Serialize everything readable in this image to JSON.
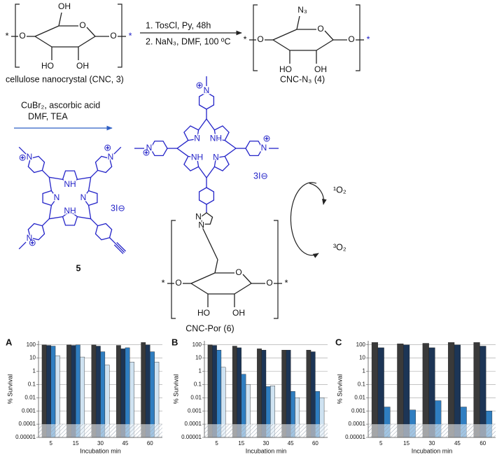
{
  "scheme": {
    "step1": [
      "1. TosCl, Py, 48h",
      "2. NaN₃, DMF, 100 ºC"
    ],
    "compound3": "cellulose nanocrystal (CNC, 3)",
    "compound4": "CNC-N₃ (4)",
    "step2": [
      "CuBr₂, ascorbic acid",
      "DMF, TEA"
    ],
    "compound6": "CNC-Por (6)",
    "cycle": [
      "¹O₂",
      "³O₂"
    ],
    "sugars": [
      {
        "atoms": [
          "O",
          "O",
          "O",
          "HO",
          "OH",
          "OH"
        ],
        "stars": [
          "*",
          "*"
        ]
      },
      {
        "atoms": [
          "O",
          "O",
          "O",
          "HO",
          "OH",
          "N₃"
        ],
        "stars": [
          "*",
          "*"
        ]
      },
      {
        "atoms": [
          "O",
          "O",
          "O",
          "HO",
          "OH"
        ],
        "stars": [
          "*",
          "*"
        ]
      }
    ],
    "porphyrins": [
      {
        "label": "5",
        "atoms": [
          "N",
          "NH",
          "N",
          "NH"
        ],
        "pyridinium": [
          "N",
          "N",
          "N"
        ],
        "counterion": "3I⊖"
      },
      {
        "atoms": [
          "N",
          "NH",
          "N",
          "NH"
        ],
        "pyridinium": [
          "N",
          "N",
          "N"
        ],
        "triazole": [
          "N",
          "N"
        ],
        "counterion": "3I⊖"
      }
    ]
  },
  "chart_data": [
    {
      "type": "bar",
      "label": "A",
      "xlabel": "Incubation min",
      "ylabel": "% Survival",
      "categories": [
        "5",
        "15",
        "30",
        "45",
        "60"
      ],
      "series": [
        {
          "color": "#3a3a3a",
          "values": [
            100,
            100,
            100,
            90,
            150
          ]
        },
        {
          "color": "#1c3556",
          "values": [
            90,
            90,
            80,
            50,
            100
          ]
        },
        {
          "color": "#2f7ec1",
          "values": [
            80,
            100,
            30,
            60,
            30
          ]
        },
        {
          "color": "#cfe3f2",
          "values": [
            15,
            12,
            3,
            5,
            5
          ]
        }
      ],
      "ylim": [
        1e-05,
        200
      ],
      "yticks": [
        1e-05,
        0.0001,
        0.001,
        0.01,
        0.1,
        1,
        10,
        100
      ],
      "log_y": true,
      "grid": true,
      "shaded_below": 0.0001
    },
    {
      "type": "bar",
      "label": "B",
      "xlabel": "Incubation min",
      "ylabel": "% Survival",
      "categories": [
        "5",
        "15",
        "30",
        "45",
        "60"
      ],
      "series": [
        {
          "color": "#3a3a3a",
          "values": [
            100,
            80,
            50,
            40,
            40
          ]
        },
        {
          "color": "#1c3556",
          "values": [
            90,
            60,
            40,
            40,
            30
          ]
        },
        {
          "color": "#2f7ec1",
          "values": [
            40,
            0.6,
            0.07,
            0.03,
            0.03
          ]
        },
        {
          "color": "#cfe3f2",
          "values": [
            2,
            0.1,
            0.08,
            0.01,
            0.01
          ]
        }
      ],
      "ylim": [
        1e-05,
        200
      ],
      "yticks": [
        1e-05,
        0.0001,
        0.001,
        0.01,
        0.1,
        1,
        10,
        100
      ],
      "log_y": true,
      "grid": true,
      "shaded_below": 0.0001
    },
    {
      "type": "bar",
      "label": "C",
      "xlabel": "Incubation min",
      "ylabel": "% Survival",
      "categories": [
        "5",
        "15",
        "30",
        "45",
        "60"
      ],
      "series": [
        {
          "color": "#3a3a3a",
          "values": [
            150,
            120,
            130,
            150,
            150
          ]
        },
        {
          "color": "#1c3556",
          "values": [
            60,
            100,
            60,
            100,
            80
          ]
        },
        {
          "color": "#2f7ec1",
          "values": [
            0.002,
            0.0012,
            0.006,
            0.002,
            0.001
          ]
        }
      ],
      "ylim": [
        1e-05,
        200
      ],
      "yticks": [
        1e-05,
        0.0001,
        0.001,
        0.01,
        0.1,
        1,
        10,
        100
      ],
      "log_y": true,
      "grid": true,
      "shaded_below": 0.0001
    }
  ]
}
